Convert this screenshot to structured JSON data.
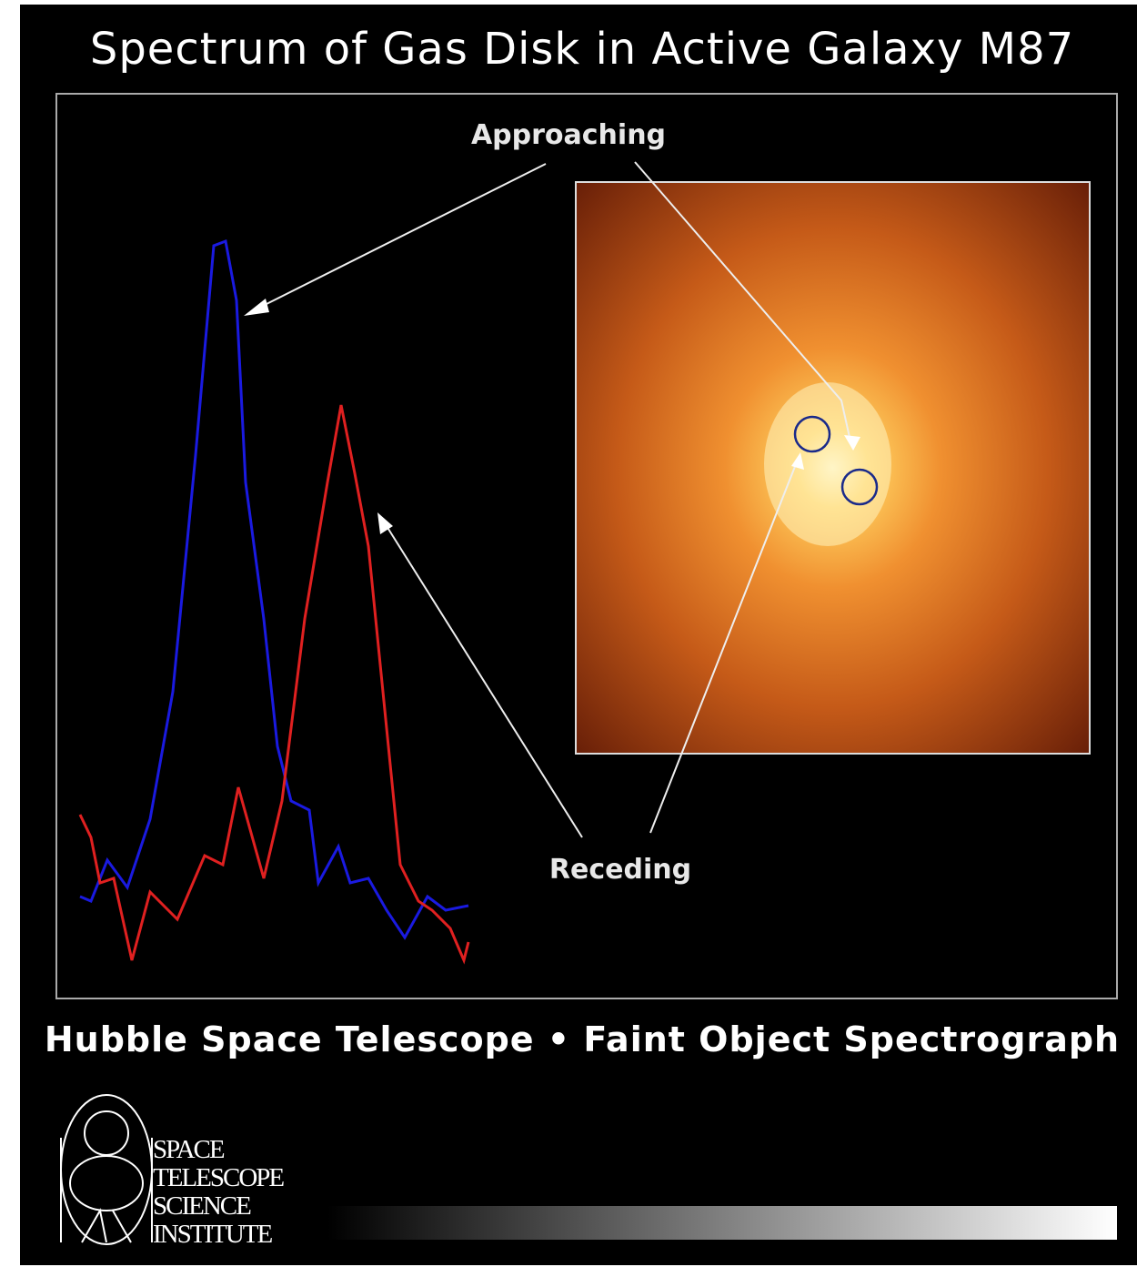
{
  "title": "Spectrum of Gas Disk in Active Galaxy M87",
  "labels": {
    "approaching": "Approaching",
    "receding": "Receding"
  },
  "footer": "Hubble Space Telescope • Faint Object Spectrograph",
  "logo": {
    "lines": [
      "SPACE",
      "TELESCOPE",
      "SCIENCE",
      "INSTITUTE"
    ]
  }
}
